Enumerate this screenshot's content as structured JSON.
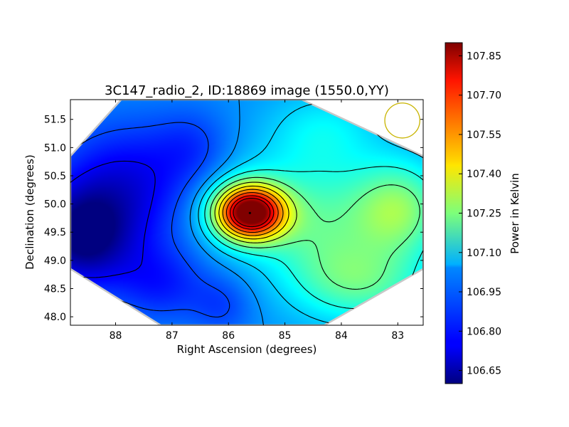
{
  "chart_data": {
    "type": "heatmap",
    "title": "3C147_radio_2, ID:18869 image (1550.0,YY)",
    "xlabel": "Right Ascension (degrees)",
    "ylabel": "Declination (degrees)",
    "colorbar_label": "Power in Kelvin",
    "colormap": "jet",
    "xlim": [
      88.8,
      82.55
    ],
    "ylim": [
      47.85,
      51.85
    ],
    "x_ticks": [
      88,
      87,
      86,
      85,
      84,
      83
    ],
    "x_tick_labels": [
      "88",
      "87",
      "86",
      "85",
      "84",
      "83"
    ],
    "y_ticks": [
      48.0,
      48.5,
      49.0,
      49.5,
      50.0,
      50.5,
      51.0,
      51.5
    ],
    "y_tick_labels": [
      "48.0",
      "48.5",
      "49.0",
      "49.5",
      "50.0",
      "50.5",
      "51.0",
      "51.5"
    ],
    "colorbar_range": [
      106.6,
      107.9
    ],
    "colorbar_ticks": [
      106.65,
      106.8,
      106.95,
      107.1,
      107.25,
      107.4,
      107.55,
      107.7,
      107.85
    ],
    "colorbar_tick_labels": [
      "106.65",
      "106.80",
      "106.95",
      "107.10",
      "107.25",
      "107.40",
      "107.55",
      "107.70",
      "107.85"
    ],
    "base_level": 106.95,
    "field_shape": "hexagon",
    "hexagon_vertices": [
      {
        "ra": 87.9,
        "dec": 51.85
      },
      {
        "ra": 84.7,
        "dec": 51.85
      },
      {
        "ra": 82.55,
        "dec": 50.85
      },
      {
        "ra": 82.55,
        "dec": 48.85
      },
      {
        "ra": 84.3,
        "dec": 47.85
      },
      {
        "ra": 87.2,
        "dec": 47.85
      },
      {
        "ra": 88.8,
        "dec": 48.85
      },
      {
        "ra": 88.8,
        "dec": 50.85
      }
    ],
    "components": [
      {
        "ra": 85.62,
        "dec": 49.85,
        "amplitude": 0.95,
        "sigma_ra": 0.42,
        "sigma_dec": 0.33
      },
      {
        "ra": 85.7,
        "dec": 49.95,
        "amplitude": 0.12,
        "sigma_ra": 0.8,
        "sigma_dec": 0.7
      },
      {
        "ra": 83.0,
        "dec": 49.9,
        "amplitude": 0.32,
        "sigma_ra": 0.6,
        "sigma_dec": 0.6
      },
      {
        "ra": 83.6,
        "dec": 48.6,
        "amplitude": 0.22,
        "sigma_ra": 0.8,
        "sigma_dec": 0.5
      },
      {
        "ra": 84.4,
        "dec": 49.6,
        "amplitude": 0.2,
        "sigma_ra": 0.7,
        "sigma_dec": 0.8
      },
      {
        "ra": 84.3,
        "dec": 51.3,
        "amplitude": 0.12,
        "sigma_ra": 0.7,
        "sigma_dec": 0.5
      },
      {
        "ra": 88.6,
        "dec": 49.4,
        "amplitude": -0.33,
        "sigma_ra": 0.6,
        "sigma_dec": 0.6
      },
      {
        "ra": 87.8,
        "dec": 50.3,
        "amplitude": -0.22,
        "sigma_ra": 0.9,
        "sigma_dec": 0.8
      },
      {
        "ra": 87.2,
        "dec": 48.6,
        "amplitude": -0.15,
        "sigma_ra": 0.6,
        "sigma_dec": 0.5
      },
      {
        "ra": 86.6,
        "dec": 51.0,
        "amplitude": -0.1,
        "sigma_ra": 0.5,
        "sigma_dec": 0.5
      },
      {
        "ra": 86.1,
        "dec": 48.2,
        "amplitude": -0.1,
        "sigma_ra": 0.4,
        "sigma_dec": 0.4
      }
    ],
    "peak": {
      "ra": 85.62,
      "dec": 49.84
    },
    "contour_levels": [
      106.75,
      106.85,
      106.95,
      107.03,
      107.12,
      107.22,
      107.32,
      107.42,
      107.52,
      107.62,
      107.72,
      107.8
    ],
    "beam": {
      "ra": 82.92,
      "dec": 51.48,
      "diameter_deg": 0.62,
      "color": "#c8b400"
    },
    "hexagon_edge_color": "#c8c8c8"
  }
}
